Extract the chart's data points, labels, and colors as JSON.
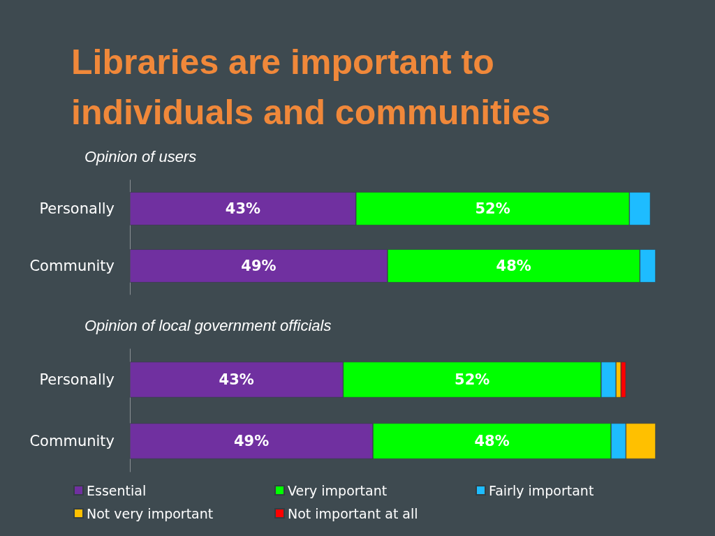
{
  "chart_data": [
    {
      "type": "bar",
      "orientation": "horizontal",
      "stacked": true,
      "title": "Libraries are important to individuals and communities",
      "subtitle": "Opinion of users",
      "categories": [
        "Personally",
        "Community"
      ],
      "legend": false,
      "series": [
        {
          "color": "#7030a0",
          "values": [
            43,
            49
          ],
          "value_labels": [
            "43%",
            "49%"
          ]
        },
        {
          "color": "#00ff00",
          "values": [
            52,
            48
          ],
          "value_labels": [
            "52%",
            "48%"
          ]
        },
        {
          "color": "#1ebcff",
          "values": [
            4,
            3
          ]
        }
      ]
    },
    {
      "type": "bar",
      "orientation": "horizontal",
      "stacked": true,
      "subtitle": "Opinion of local government officials",
      "categories": [
        "Personally",
        "Community"
      ],
      "legend": "bottom",
      "series": [
        {
          "name": "Essential",
          "color": "#7030a0",
          "values": [
            43,
            49
          ],
          "value_labels": [
            "43%",
            "49%"
          ]
        },
        {
          "name": "Very important",
          "color": "#00ff00",
          "values": [
            52,
            48
          ],
          "value_labels": [
            "52%",
            "48%"
          ]
        },
        {
          "name": "Fairly important",
          "color": "#1ebcff",
          "values": [
            3,
            3
          ]
        },
        {
          "name": "Not very important",
          "color": "#ffc000",
          "values": [
            1,
            6
          ]
        },
        {
          "name": "Not important at all",
          "color": "#ff0000",
          "values": [
            1,
            null
          ]
        }
      ]
    }
  ]
}
